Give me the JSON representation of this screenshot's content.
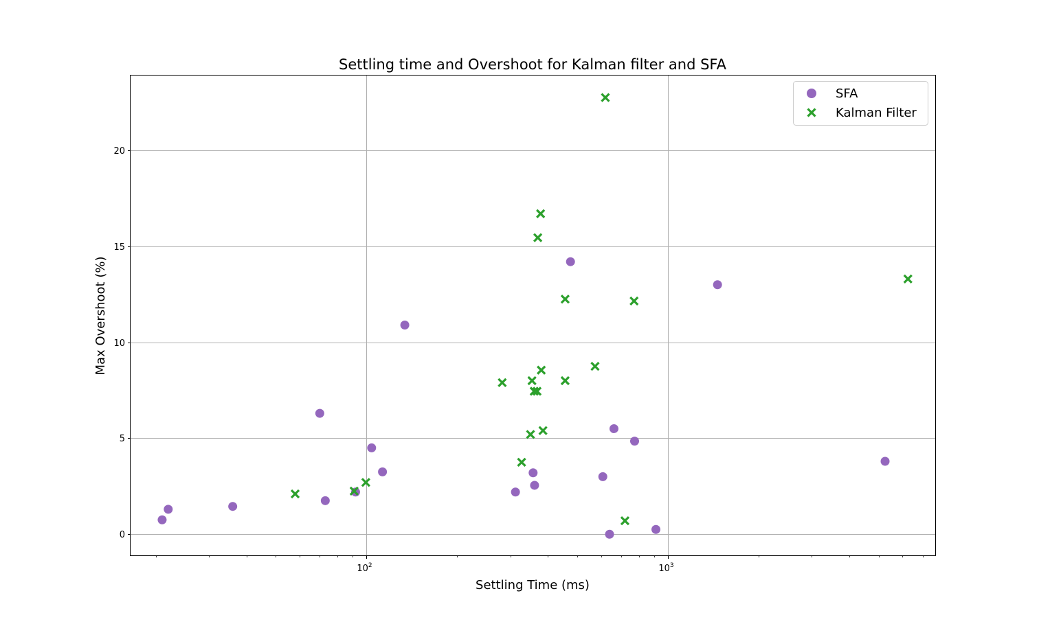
{
  "chart_data": {
    "type": "scatter",
    "title": "Settling time and Overshoot for Kalman filter and SFA",
    "xlabel": "Settling Time (ms)",
    "ylabel": "Max Overshoot (%)",
    "xscale": "log",
    "xlim": [
      16.5,
      7700
    ],
    "ylim": [
      -1.1,
      23.9
    ],
    "grid": true,
    "legend": "top-right",
    "x_ticks": [
      {
        "value": 100,
        "base": "10",
        "exp": "2"
      },
      {
        "value": 1000,
        "base": "10",
        "exp": "3"
      }
    ],
    "y_ticks": [
      0,
      5,
      10,
      15,
      20
    ],
    "series": [
      {
        "name": "SFA",
        "marker": "circle",
        "color": "#9467bd",
        "points": [
          {
            "x": 21,
            "y": 0.75
          },
          {
            "x": 22,
            "y": 1.3
          },
          {
            "x": 36,
            "y": 1.45
          },
          {
            "x": 70,
            "y": 6.3
          },
          {
            "x": 73,
            "y": 1.75
          },
          {
            "x": 92,
            "y": 2.2
          },
          {
            "x": 104,
            "y": 4.5
          },
          {
            "x": 113,
            "y": 3.25
          },
          {
            "x": 134,
            "y": 10.9
          },
          {
            "x": 312,
            "y": 2.2
          },
          {
            "x": 357,
            "y": 3.2
          },
          {
            "x": 361,
            "y": 2.55
          },
          {
            "x": 475,
            "y": 14.2
          },
          {
            "x": 608,
            "y": 3.0
          },
          {
            "x": 640,
            "y": 0.0
          },
          {
            "x": 662,
            "y": 5.5
          },
          {
            "x": 775,
            "y": 4.85
          },
          {
            "x": 912,
            "y": 0.25
          },
          {
            "x": 1460,
            "y": 13.0
          },
          {
            "x": 5250,
            "y": 3.8
          }
        ]
      },
      {
        "name": "Kalman Filter",
        "marker": "x",
        "color": "#2ca02c",
        "points": [
          {
            "x": 58,
            "y": 2.1
          },
          {
            "x": 91,
            "y": 2.25
          },
          {
            "x": 99.5,
            "y": 2.7
          },
          {
            "x": 282,
            "y": 7.9
          },
          {
            "x": 327,
            "y": 3.75
          },
          {
            "x": 350,
            "y": 5.2
          },
          {
            "x": 354,
            "y": 8.0
          },
          {
            "x": 360,
            "y": 7.45
          },
          {
            "x": 368,
            "y": 7.45
          },
          {
            "x": 370,
            "y": 15.45
          },
          {
            "x": 378,
            "y": 16.7
          },
          {
            "x": 380,
            "y": 8.55
          },
          {
            "x": 385,
            "y": 5.4
          },
          {
            "x": 456,
            "y": 8.0
          },
          {
            "x": 456,
            "y": 12.25
          },
          {
            "x": 573,
            "y": 8.75
          },
          {
            "x": 620,
            "y": 22.75
          },
          {
            "x": 720,
            "y": 0.7
          },
          {
            "x": 772,
            "y": 12.15
          },
          {
            "x": 6250,
            "y": 13.3
          }
        ]
      }
    ]
  }
}
